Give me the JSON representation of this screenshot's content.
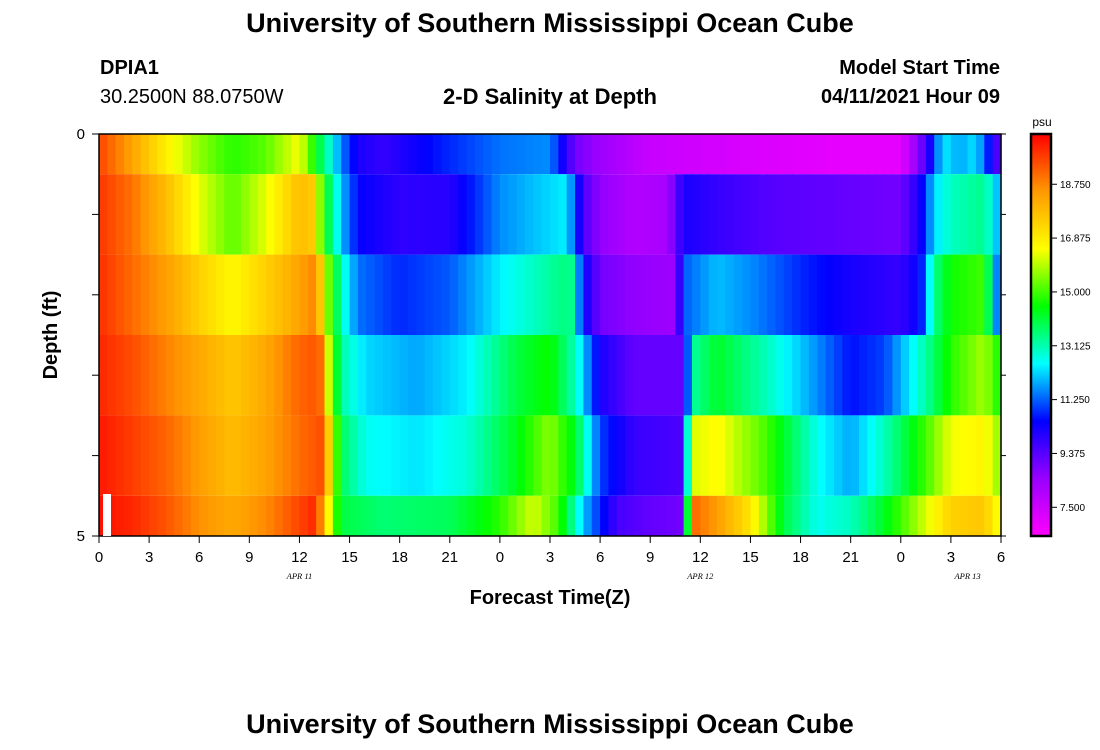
{
  "page": {
    "title_top": "University of Southern Mississippi Ocean Cube",
    "title_bottom": "University of Southern Mississippi Ocean Cube",
    "station_id": "DPIA1",
    "station_coords": "30.2500N  88.0750W",
    "plot_title": "2-D Salinity at Depth",
    "model_label": "Model Start Time",
    "model_time": "04/11/2021 Hour 09"
  },
  "colors": {
    "colormap": [
      "#ff00ff",
      "#9900ff",
      "#0000ff",
      "#00ffff",
      "#00ff00",
      "#ffff00",
      "#ff9900",
      "#ff0000"
    ]
  },
  "chart_data": {
    "type": "heatmap",
    "title": "2-D Salinity at Depth",
    "xlabel": "Forecast Time(Z)",
    "ylabel": "Depth (ft)",
    "x_ticks": [
      "0",
      "3",
      "6",
      "9",
      "12",
      "15",
      "18",
      "21",
      "0",
      "3",
      "6",
      "9",
      "12",
      "15",
      "18",
      "21",
      "0",
      "3",
      "6"
    ],
    "date_labels": [
      {
        "label": "APR  11",
        "at_hour": 12
      },
      {
        "label": "APR  12",
        "at_hour": 36
      },
      {
        "label": "APR  13",
        "at_hour": 52
      }
    ],
    "y_tick_labels": [
      "0",
      "5"
    ],
    "ylim": [
      0,
      5
    ],
    "xlim_hours": [
      0,
      54
    ],
    "colorbar": {
      "unit": "psu",
      "vmin": 6.5,
      "vmax": 20.5,
      "ticks": [
        7.5,
        9.375,
        11.25,
        13.125,
        15.0,
        16.875,
        18.75
      ],
      "tick_labels": [
        "7.500",
        "9.375",
        "11.250",
        "13.125",
        "15.000",
        "16.875",
        "18.750"
      ]
    },
    "depth_layers": [
      {
        "depth_ft": [
          0.0,
          0.5
        ],
        "knots": [
          [
            0,
            19.6
          ],
          [
            2,
            18.3
          ],
          [
            4,
            16.8
          ],
          [
            6,
            15.6
          ],
          [
            8,
            14.8
          ],
          [
            10,
            15.2
          ],
          [
            12,
            16.5
          ],
          [
            13.2,
            14.0
          ],
          [
            14.5,
            11.5
          ],
          [
            15.5,
            10.2
          ],
          [
            17,
            9.8
          ],
          [
            20,
            10.6
          ],
          [
            22,
            11.0
          ],
          [
            24,
            11.4
          ],
          [
            27,
            11.6
          ],
          [
            28.5,
            9.0
          ],
          [
            30,
            8.4
          ],
          [
            33,
            7.6
          ],
          [
            36,
            7.4
          ],
          [
            40,
            7.2
          ],
          [
            44,
            7.0
          ],
          [
            48,
            7.0
          ],
          [
            49.2,
            9.0
          ],
          [
            49.8,
            10.3
          ],
          [
            50.5,
            12.4
          ],
          [
            51.5,
            11.8
          ],
          [
            52.5,
            12.3
          ],
          [
            53.2,
            10.8
          ],
          [
            54,
            9.0
          ]
        ]
      },
      {
        "depth_ft": [
          0.5,
          1.5
        ],
        "knots": [
          [
            0,
            19.8
          ],
          [
            2,
            19.0
          ],
          [
            4,
            17.8
          ],
          [
            6,
            16.3
          ],
          [
            8,
            15.2
          ],
          [
            10,
            16.3
          ],
          [
            12,
            17.8
          ],
          [
            12.8,
            17.5
          ],
          [
            13.5,
            14.5
          ],
          [
            14.5,
            12.0
          ],
          [
            15.5,
            10.5
          ],
          [
            18,
            9.9
          ],
          [
            21,
            10.0
          ],
          [
            24,
            11.6
          ],
          [
            28,
            12.4
          ],
          [
            29,
            9.5
          ],
          [
            30,
            8.6
          ],
          [
            32,
            8.0
          ],
          [
            34,
            8.2
          ],
          [
            35,
            10.2
          ],
          [
            37,
            9.8
          ],
          [
            40,
            9.4
          ],
          [
            44,
            9.2
          ],
          [
            48,
            9.0
          ],
          [
            49.2,
            10.3
          ],
          [
            50,
            12.2
          ],
          [
            51,
            13.0
          ],
          [
            53,
            13.4
          ],
          [
            54,
            11.6
          ]
        ]
      },
      {
        "depth_ft": [
          1.5,
          2.5
        ],
        "knots": [
          [
            0,
            19.9
          ],
          [
            2,
            19.1
          ],
          [
            4,
            18.4
          ],
          [
            6,
            17.4
          ],
          [
            8,
            16.6
          ],
          [
            10,
            17.4
          ],
          [
            12,
            18.3
          ],
          [
            13,
            18.8
          ],
          [
            13.7,
            15.5
          ],
          [
            14.5,
            13.0
          ],
          [
            15.5,
            11.4
          ],
          [
            18,
            10.8
          ],
          [
            21,
            11.2
          ],
          [
            24,
            12.4
          ],
          [
            28.2,
            13.6
          ],
          [
            29,
            10.5
          ],
          [
            30,
            9.0
          ],
          [
            32,
            8.6
          ],
          [
            34.5,
            8.4
          ],
          [
            35,
            11.2
          ],
          [
            37,
            12.0
          ],
          [
            39,
            11.6
          ],
          [
            42,
            10.8
          ],
          [
            45,
            10.2
          ],
          [
            48,
            9.8
          ],
          [
            49.2,
            10.6
          ],
          [
            50,
            13.4
          ],
          [
            51,
            14.6
          ],
          [
            53,
            15.0
          ],
          [
            54,
            10.4
          ]
        ]
      },
      {
        "depth_ft": [
          2.5,
          3.5
        ],
        "knots": [
          [
            0,
            20.0
          ],
          [
            2,
            19.5
          ],
          [
            4,
            18.8
          ],
          [
            6,
            18.2
          ],
          [
            8,
            17.6
          ],
          [
            10,
            18.2
          ],
          [
            12,
            19.2
          ],
          [
            13.2,
            19.4
          ],
          [
            13.8,
            15.8
          ],
          [
            14.5,
            13.2
          ],
          [
            16,
            12.2
          ],
          [
            19,
            11.8
          ],
          [
            22,
            12.4
          ],
          [
            25,
            14.0
          ],
          [
            27,
            14.6
          ],
          [
            28.5,
            13.0
          ],
          [
            30,
            10.2
          ],
          [
            32,
            9.2
          ],
          [
            35,
            9.2
          ],
          [
            35.5,
            13.2
          ],
          [
            37,
            14.2
          ],
          [
            40,
            13.0
          ],
          [
            43,
            11.6
          ],
          [
            45,
            10.6
          ],
          [
            47,
            11.0
          ],
          [
            49.5,
            13.2
          ],
          [
            51,
            14.8
          ],
          [
            53,
            15.8
          ],
          [
            54,
            14.5
          ]
        ]
      },
      {
        "depth_ft": [
          3.5,
          4.5
        ],
        "knots": [
          [
            0,
            20.2
          ],
          [
            2,
            19.7
          ],
          [
            4,
            19.2
          ],
          [
            6,
            18.4
          ],
          [
            8,
            17.8
          ],
          [
            10,
            18.3
          ],
          [
            12,
            19.1
          ],
          [
            13.4,
            19.5
          ],
          [
            14,
            16.0
          ],
          [
            14.5,
            13.8
          ],
          [
            16,
            12.6
          ],
          [
            19,
            12.3
          ],
          [
            22,
            12.8
          ],
          [
            25,
            14.3
          ],
          [
            27,
            15.6
          ],
          [
            28.5,
            14.2
          ],
          [
            30,
            11.0
          ],
          [
            32,
            9.8
          ],
          [
            35,
            9.5
          ],
          [
            35.5,
            16.2
          ],
          [
            37,
            16.6
          ],
          [
            40,
            15.0
          ],
          [
            43,
            12.6
          ],
          [
            45,
            11.8
          ],
          [
            47,
            13.0
          ],
          [
            49.5,
            15.0
          ],
          [
            51,
            16.4
          ],
          [
            53,
            16.7
          ],
          [
            54,
            15.5
          ]
        ]
      },
      {
        "depth_ft": [
          4.5,
          5.0
        ],
        "knots": [
          [
            0,
            20.3
          ],
          [
            2,
            20.0
          ],
          [
            4,
            19.4
          ],
          [
            6,
            18.6
          ],
          [
            8,
            18.2
          ],
          [
            10,
            18.7
          ],
          [
            12,
            19.6
          ],
          [
            13,
            20.0
          ],
          [
            14,
            15.4
          ],
          [
            14.5,
            14.0
          ],
          [
            17,
            13.6
          ],
          [
            21,
            13.8
          ],
          [
            24,
            14.8
          ],
          [
            26,
            16.2
          ],
          [
            27.5,
            15.0
          ],
          [
            29,
            12.0
          ],
          [
            31,
            9.6
          ],
          [
            33,
            9.2
          ],
          [
            35,
            9.0
          ],
          [
            35.5,
            19.2
          ],
          [
            37,
            18.4
          ],
          [
            39,
            17.0
          ],
          [
            41,
            14.0
          ],
          [
            43,
            12.6
          ],
          [
            45,
            13.0
          ],
          [
            47,
            14.2
          ],
          [
            49,
            15.8
          ],
          [
            51,
            17.4
          ],
          [
            53,
            17.6
          ],
          [
            54,
            16.2
          ]
        ]
      }
    ]
  }
}
